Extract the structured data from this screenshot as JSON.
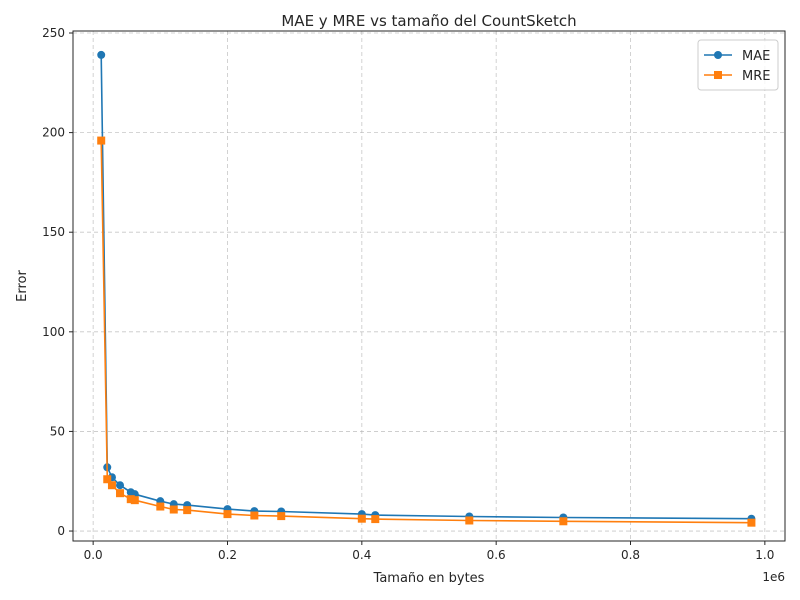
{
  "chart_data": {
    "type": "line",
    "title": "MAE y MRE vs tamaño del CountSketch",
    "xlabel": "Tamaño en bytes",
    "ylabel": "Error",
    "x_offset_label": "1e6",
    "xlim": [
      -0.03,
      1.03
    ],
    "ylim": [
      -5,
      251
    ],
    "xticks": [
      0.0,
      0.2,
      0.4,
      0.6,
      0.8,
      1.0
    ],
    "xtick_labels": [
      "0.0",
      "0.2",
      "0.4",
      "0.6",
      "0.8",
      "1.0"
    ],
    "yticks": [
      0,
      50,
      100,
      150,
      200,
      250
    ],
    "ytick_labels": [
      "0",
      "50",
      "100",
      "150",
      "200",
      "250"
    ],
    "grid": true,
    "legend_position": "top-right",
    "series": [
      {
        "name": "MAE",
        "color": "#1f77b4",
        "marker": "circle",
        "x": [
          0.012,
          0.021,
          0.028,
          0.04,
          0.056,
          0.062,
          0.1,
          0.12,
          0.14,
          0.2,
          0.24,
          0.28,
          0.4,
          0.42,
          0.56,
          0.7,
          0.98
        ],
        "y": [
          239,
          32,
          27,
          23,
          19.5,
          18.5,
          15,
          13.5,
          13,
          11,
          10,
          9.8,
          8.5,
          8,
          7.3,
          6.8,
          6.2
        ]
      },
      {
        "name": "MRE",
        "color": "#ff7f0e",
        "marker": "square",
        "x": [
          0.012,
          0.021,
          0.028,
          0.04,
          0.056,
          0.062,
          0.1,
          0.12,
          0.14,
          0.2,
          0.24,
          0.28,
          0.4,
          0.42,
          0.56,
          0.7,
          0.98
        ],
        "y": [
          196,
          26,
          23,
          19,
          16,
          15.5,
          12.3,
          10.8,
          10.5,
          8.5,
          7.8,
          7.5,
          6.2,
          6,
          5.3,
          4.9,
          4.2
        ]
      }
    ]
  }
}
